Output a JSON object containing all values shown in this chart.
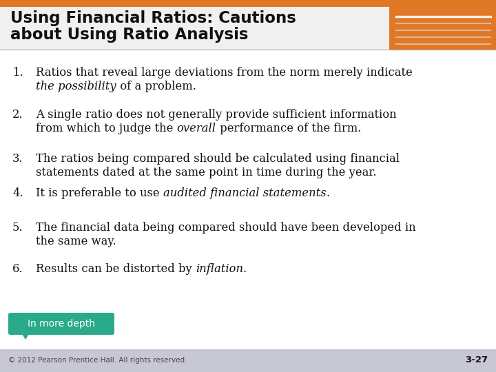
{
  "title_line1": "Using Financial Ratios: Cautions",
  "title_line2": "about Using Ratio Analysis",
  "header_bg_color": "#F0F0F0",
  "header_stripe_color": "#E07828",
  "body_bg_color": "#FFFFFF",
  "footer_bg_color": "#C8C8D4",
  "title_font_color": "#111111",
  "body_font_color": "#111111",
  "footer_text": "© 2012 Pearson Prentice Hall. All rights reserved.",
  "footer_page": "3-27",
  "button_color": "#2aaa8a",
  "button_text": "In more depth",
  "items": [
    {
      "num": "1.",
      "lines": [
        [
          {
            "text": "Ratios that reveal large deviations from the norm merely indicate",
            "italic": false
          }
        ],
        [
          {
            "text": "the possibility",
            "italic": true
          },
          {
            "text": " of a problem.",
            "italic": false
          }
        ]
      ]
    },
    {
      "num": "2.",
      "lines": [
        [
          {
            "text": "A single ratio does not generally provide sufficient information",
            "italic": false
          }
        ],
        [
          {
            "text": "from which to judge the ",
            "italic": false
          },
          {
            "text": "overall",
            "italic": true
          },
          {
            "text": " performance of the firm.",
            "italic": false
          }
        ]
      ]
    },
    {
      "num": "3.",
      "lines": [
        [
          {
            "text": "The ratios being compared should be calculated using financial",
            "italic": false
          }
        ],
        [
          {
            "text": "statements dated at the same point in time during the year.",
            "italic": false
          }
        ]
      ]
    },
    {
      "num": "4.",
      "lines": [
        [
          {
            "text": "It is preferable to use ",
            "italic": false
          },
          {
            "text": "audited financial statements",
            "italic": true
          },
          {
            "text": ".",
            "italic": false
          }
        ]
      ]
    },
    {
      "num": "5.",
      "lines": [
        [
          {
            "text": "The financial data being compared should have been developed in",
            "italic": false
          }
        ],
        [
          {
            "text": "the same way.",
            "italic": false
          }
        ]
      ]
    },
    {
      "num": "6.",
      "lines": [
        [
          {
            "text": "Results can be distorted by ",
            "italic": false
          },
          {
            "text": "inflation",
            "italic": true
          },
          {
            "text": ".",
            "italic": false
          }
        ]
      ]
    }
  ]
}
